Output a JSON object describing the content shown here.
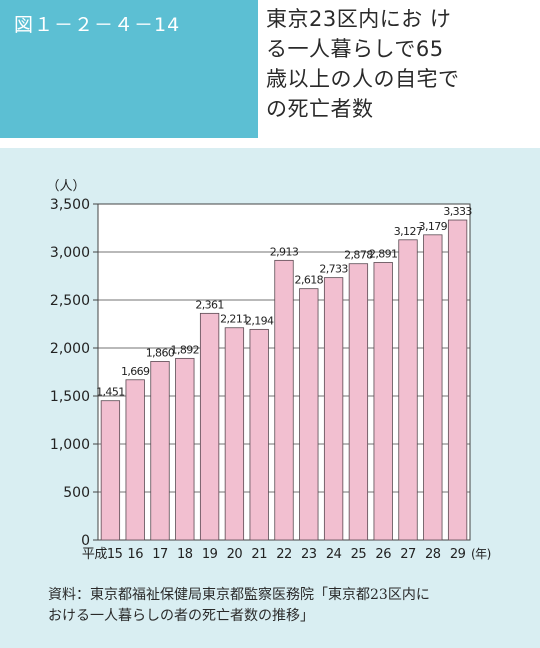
{
  "header": {
    "figure_number": "図１－２－４－14",
    "title_lines": [
      "東京23区内にお け",
      "る一人暮らしで65",
      "歳以上の人の自宅で",
      "の死亡者数"
    ]
  },
  "chart_data": {
    "type": "bar",
    "title": "",
    "ylabel": "（人）",
    "xunit": "(年)",
    "ylim": [
      0,
      3500
    ],
    "yticks": [
      0,
      500,
      1000,
      1500,
      2000,
      2500,
      3000,
      3500
    ],
    "ytick_labels": [
      "0",
      "500",
      "1,000",
      "1,500",
      "2,000",
      "2,500",
      "3,000",
      "3,500"
    ],
    "categories": [
      "平成15",
      "16",
      "17",
      "18",
      "19",
      "20",
      "21",
      "22",
      "23",
      "24",
      "25",
      "26",
      "27",
      "28",
      "29"
    ],
    "values": [
      1451,
      1669,
      1860,
      1892,
      2361,
      2211,
      2194,
      2913,
      2618,
      2733,
      2878,
      2891,
      3127,
      3179,
      3333
    ],
    "value_labels": [
      "1,451",
      "1,669",
      "1,860",
      "1,892",
      "2,361",
      "2,211",
      "2,194",
      "2,913",
      "2,618",
      "2,733",
      "2,878",
      "2,891",
      "3,127",
      "3,179",
      "3,333"
    ],
    "grid": true,
    "colors": {
      "bar_fill": "#f2bfd0",
      "bar_stroke": "#5a4a52",
      "grid": "#444444",
      "panel": "#d9eef2"
    }
  },
  "source": {
    "lines": [
      "資料：東京都福祉保健局東京都監察医務院「東京都23区内に",
      "おける一人暮らしの者の死亡者数の推移」"
    ]
  }
}
